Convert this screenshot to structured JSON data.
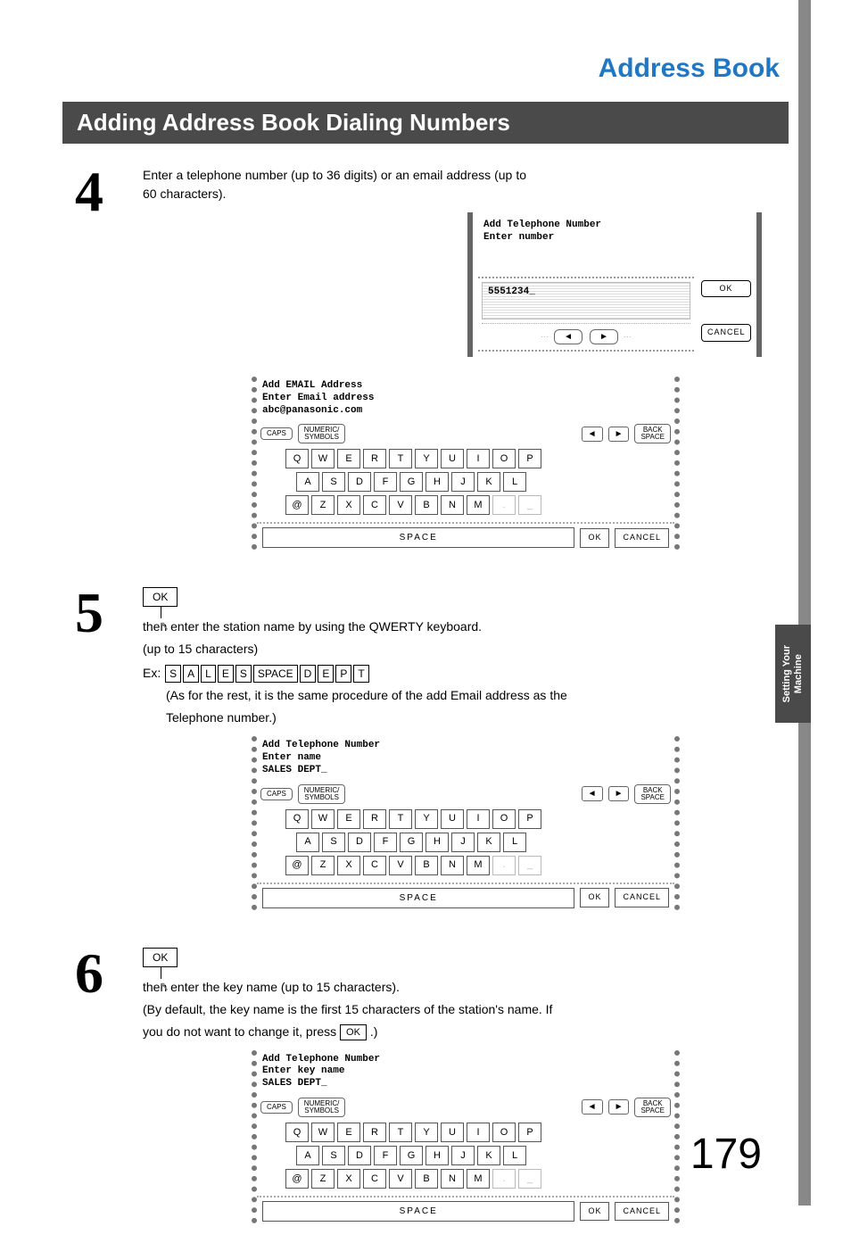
{
  "page": {
    "chapter_title": "Address Book",
    "section_title": "Adding Address Book Dialing Numbers",
    "side_tab_line1": "Setting Your",
    "side_tab_line2": "Machine",
    "page_number": "179"
  },
  "colors": {
    "chapter_title": "#2077c4",
    "section_bar_bg": "#4a4a4a",
    "section_bar_fg": "#ffffff",
    "side_bar": "#888888"
  },
  "step4": {
    "num": "4",
    "text": "Enter a telephone number (up to 36 digits) or an email address (up to 60 characters).",
    "numeric_panel": {
      "title_line1": "Add Telephone Number",
      "title_line2": "Enter number",
      "value": "5551234_",
      "ok_label": "OK",
      "cancel_label": "CANCEL",
      "arrow_left": "◄",
      "arrow_right": "►"
    },
    "email_panel": {
      "title_line1": "Add EMAIL Address",
      "title_line2": "Enter Email address",
      "title_line3": "abc@panasonic.com",
      "toolbar": {
        "caps": "CAPS",
        "numsym": "NUMERIC/\nSYMBOLS",
        "back": "BACK\nSPACE"
      },
      "row1": [
        "Q",
        "W",
        "E",
        "R",
        "T",
        "Y",
        "U",
        "I",
        "O",
        "P"
      ],
      "row2": [
        "A",
        "S",
        "D",
        "F",
        "G",
        "H",
        "J",
        "K",
        "L"
      ],
      "row3": [
        "@",
        "Z",
        "X",
        "C",
        "V",
        "B",
        "N",
        "M",
        ".",
        "_"
      ],
      "space": "SPACE",
      "ok": "OK",
      "cancel": "CANCEL"
    }
  },
  "step5": {
    "num": "5",
    "ok_label": "OK",
    "line1": "then enter the station name by using the QWERTY keyboard.",
    "line2": "(up to 15 characters)",
    "ex_prefix": "Ex:",
    "ex_keys": [
      "S",
      "A",
      "L",
      "E",
      "S",
      "SPACE",
      "D",
      "E",
      "P",
      "T"
    ],
    "paren1": "(As for the rest, it is the same procedure of the add Email address as the",
    "paren2": "Telephone number.)",
    "name_panel": {
      "title_line1": "Add Telephone Number",
      "title_line2": "Enter name",
      "title_line3": "SALES DEPT_",
      "toolbar": {
        "caps": "CAPS",
        "numsym": "NUMERIC/\nSYMBOLS",
        "back": "BACK\nSPACE"
      },
      "row1": [
        "Q",
        "W",
        "E",
        "R",
        "T",
        "Y",
        "U",
        "I",
        "O",
        "P"
      ],
      "row2": [
        "A",
        "S",
        "D",
        "F",
        "G",
        "H",
        "J",
        "K",
        "L"
      ],
      "row3": [
        "@",
        "Z",
        "X",
        "C",
        "V",
        "B",
        "N",
        "M",
        ".",
        "_"
      ],
      "space": "SPACE",
      "ok": "OK",
      "cancel": "CANCEL"
    }
  },
  "step6": {
    "num": "6",
    "ok_label": "OK",
    "line1": "then enter the key name (up to 15 characters).",
    "line2a": "(By default, the key name is the first 15 characters of the station's name.  If",
    "line2b_pre": "you do not want to change it, press ",
    "line2b_ok": "OK",
    "line2b_post": ".)",
    "keyname_panel": {
      "title_line1": "Add Telephone Number",
      "title_line2": "Enter key name",
      "title_line3": "SALES DEPT_",
      "toolbar": {
        "caps": "CAPS",
        "numsym": "NUMERIC/\nSYMBOLS",
        "back": "BACK\nSPACE"
      },
      "row1": [
        "Q",
        "W",
        "E",
        "R",
        "T",
        "Y",
        "U",
        "I",
        "O",
        "P"
      ],
      "row2": [
        "A",
        "S",
        "D",
        "F",
        "G",
        "H",
        "J",
        "K",
        "L"
      ],
      "row3": [
        "@",
        "Z",
        "X",
        "C",
        "V",
        "B",
        "N",
        "M",
        ".",
        "_"
      ],
      "space": "SPACE",
      "ok": "OK",
      "cancel": "CANCEL"
    }
  }
}
